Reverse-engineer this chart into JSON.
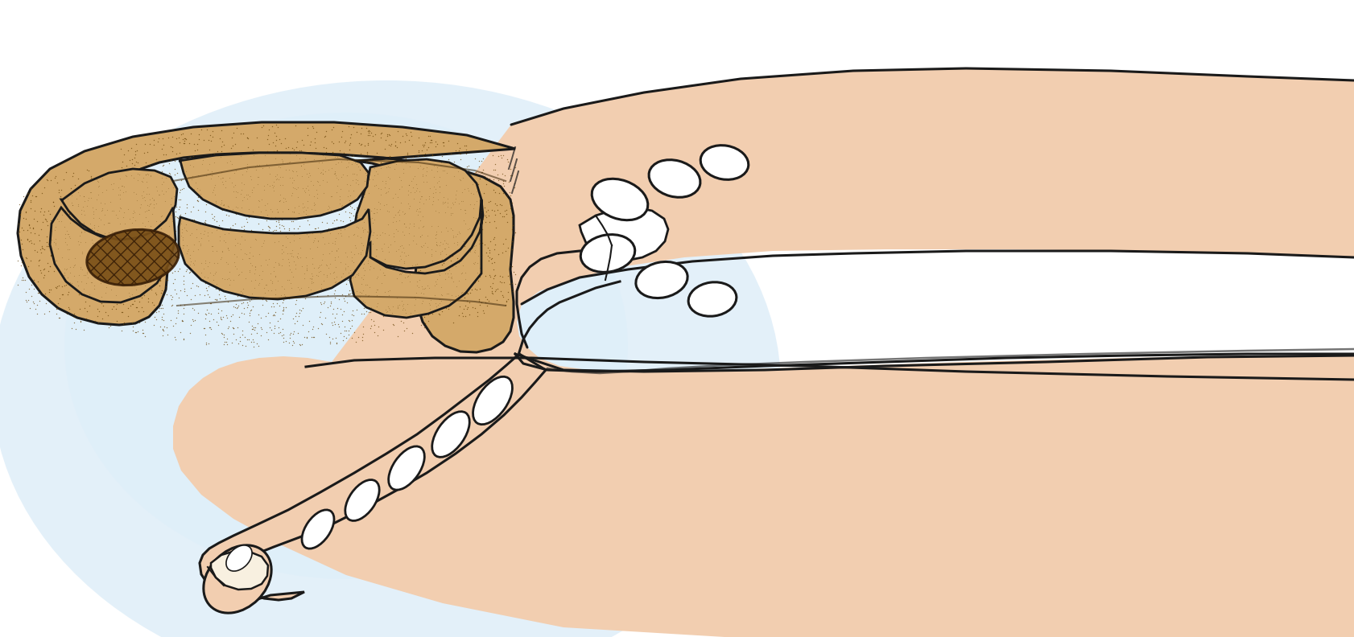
{
  "fig_width": 16.82,
  "fig_height": 7.92,
  "dpi": 100,
  "background_color": "#ffffff",
  "skin_color": "#f2ceb0",
  "skin_color_light": "#f5dcc8",
  "bone_color": "#ffffff",
  "outline_color": "#1a1a1a",
  "resected_fill": "#d4a96a",
  "resected_dark": "#8B6914",
  "tumor_color": "#6b4010",
  "glow_color": "#cde5f5"
}
